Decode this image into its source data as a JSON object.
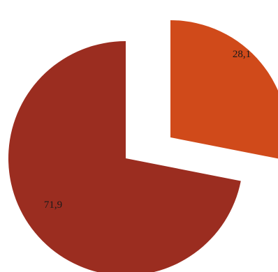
{
  "chart_data": {
    "type": "pie",
    "exploded": true,
    "start_angle_deg": 90,
    "direction": "clockwise",
    "slices": [
      {
        "label": "28,1",
        "value": 28.1,
        "color": "#D04A1A"
      },
      {
        "label": "71,9",
        "value": 71.9,
        "color": "#9B2D20"
      }
    ]
  }
}
